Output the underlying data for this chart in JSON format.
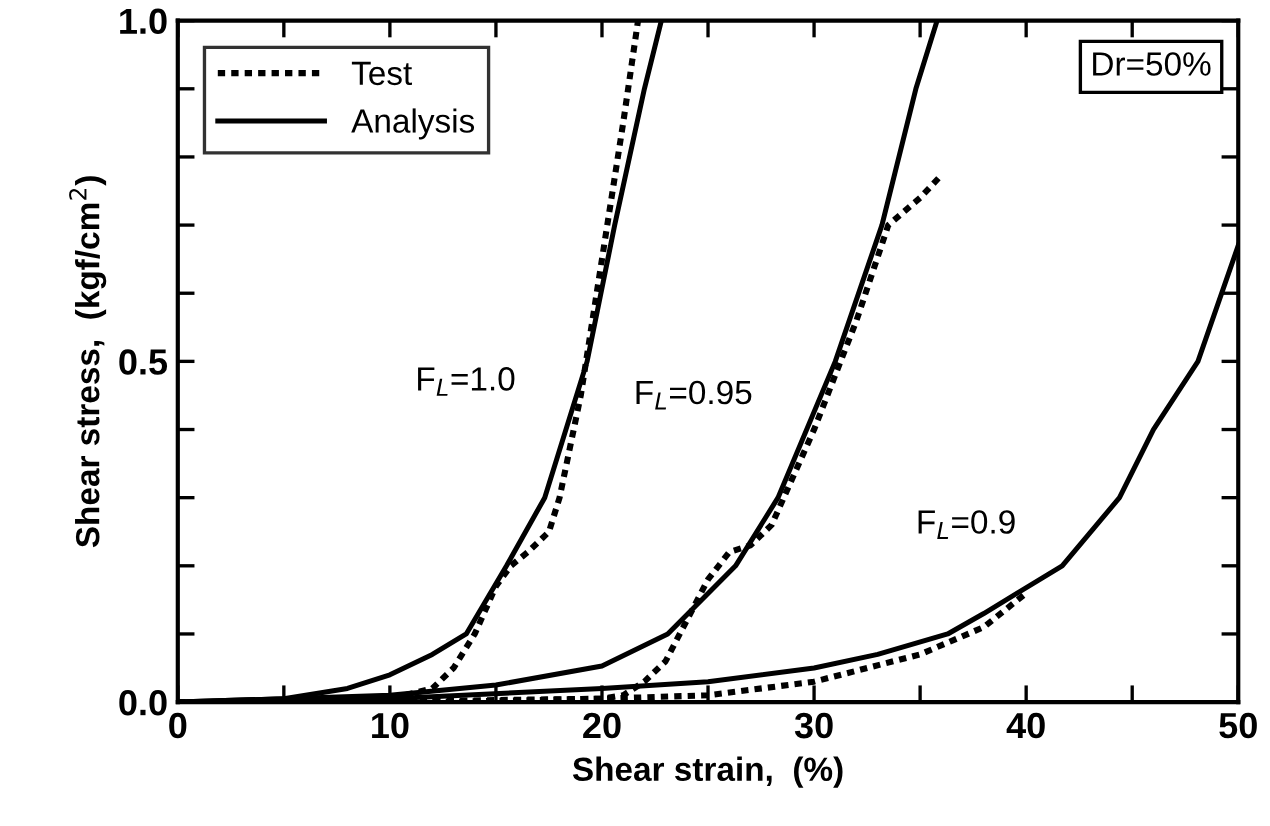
{
  "chart_data": {
    "type": "line",
    "xlabel": "Shear strain,  (%)",
    "ylabel": "Shear stress,  (kgf/cm$^{2}$)",
    "xlim": [
      0,
      50
    ],
    "ylim": [
      0,
      1.0
    ],
    "xticks": [
      0,
      {
        "value": 5,
        "label": null
      },
      10,
      {
        "value": 15,
        "label": null
      },
      20,
      {
        "value": 25,
        "label": null
      },
      30,
      {
        "value": 35,
        "label": null
      },
      40,
      {
        "value": 45,
        "label": null
      },
      50
    ],
    "yticks": [
      {
        "value": 0,
        "label": "0.0"
      },
      {
        "value": 0.1,
        "label": null
      },
      {
        "value": 0.2,
        "label": null
      },
      {
        "value": 0.3,
        "label": null
      },
      {
        "value": 0.4,
        "label": null
      },
      {
        "value": 0.5,
        "label": "0.5"
      },
      {
        "value": 0.6,
        "label": null
      },
      {
        "value": 0.7,
        "label": null
      },
      {
        "value": 0.8,
        "label": null
      },
      {
        "value": 0.9,
        "label": null
      },
      {
        "value": 1.0,
        "label": "1.0"
      }
    ],
    "grid": false,
    "legend": "top left",
    "marker": "none",
    "series": [
      {
        "name": "Test",
        "color": "#000000",
        "line_style": "dotted",
        "x": [
          0,
          5,
          10,
          12,
          13,
          14,
          15,
          15.7,
          16.5,
          17.5,
          18,
          19,
          20,
          21,
          21.7
        ],
        "values": [
          0,
          0,
          0.005,
          0.02,
          0.05,
          0.1,
          0.17,
          0.2,
          0.22,
          0.25,
          0.3,
          0.45,
          0.65,
          0.85,
          1.0
        ]
      },
      {
        "name": "Analysis",
        "color": "#000000",
        "line_style": "solid",
        "x": [
          0,
          5,
          8,
          10,
          12,
          13.6,
          15.5,
          17.3,
          19.3,
          20.6,
          22.0,
          22.8
        ],
        "values": [
          0,
          0.005,
          0.02,
          0.04,
          0.07,
          0.1,
          0.2,
          0.3,
          0.5,
          0.7,
          0.9,
          1.0
        ]
      },
      {
        "color": "#000000",
        "line_style": "dotted",
        "x": [
          0,
          10,
          15,
          20,
          21,
          22,
          23,
          24,
          25,
          26,
          27,
          28,
          29,
          30,
          31,
          32,
          33.5,
          35,
          35.9
        ],
        "values": [
          0,
          0,
          0.003,
          0.005,
          0.01,
          0.03,
          0.06,
          0.12,
          0.18,
          0.22,
          0.23,
          0.26,
          0.33,
          0.4,
          0.48,
          0.56,
          0.7,
          0.74,
          0.77
        ]
      },
      {
        "color": "#000000",
        "line_style": "solid",
        "x": [
          0,
          10,
          15,
          20,
          23.1,
          26.3,
          28.3,
          31.0,
          33.2,
          34.8,
          35.8
        ],
        "values": [
          0,
          0.01,
          0.025,
          0.053,
          0.1,
          0.2,
          0.3,
          0.5,
          0.7,
          0.9,
          1.0
        ]
      },
      {
        "color": "#000000",
        "line_style": "dotted",
        "x": [
          12,
          20,
          25,
          30,
          35,
          38,
          40
        ],
        "values": [
          0,
          0.005,
          0.01,
          0.03,
          0.07,
          0.11,
          0.16
        ]
      },
      {
        "color": "#000000",
        "line_style": "solid",
        "x": [
          0,
          10,
          20,
          25,
          30,
          33,
          36.3,
          38,
          41.7,
          44.4,
          46,
          48.1,
          50
        ],
        "values": [
          0,
          0.005,
          0.02,
          0.03,
          0.05,
          0.07,
          0.1,
          0.13,
          0.2,
          0.3,
          0.4,
          0.5,
          0.67
        ]
      }
    ],
    "annotations": [
      "F$_{L}$=1.0",
      "F$_{L}$=0.95",
      "F$_{L}$=0.9",
      "Dr=50%"
    ]
  }
}
